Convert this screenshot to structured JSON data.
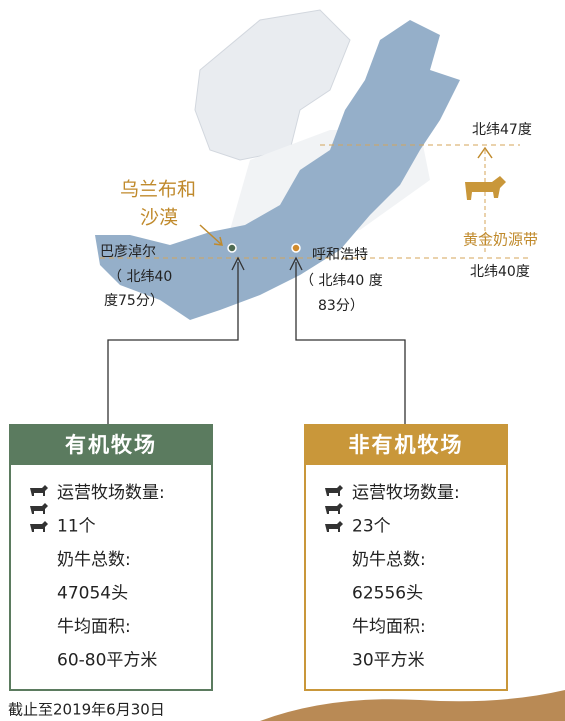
{
  "map": {
    "lat47": "北纬47度",
    "lat40": "北纬40度",
    "belt": "黄金奶源带",
    "desert": [
      "乌兰布和",
      "沙漠"
    ],
    "bayannur": {
      "name": "巴彦淖尔",
      "coord": [
        "（ 北纬40",
        "度75分）"
      ]
    },
    "hohhot": {
      "name": "呼和浩特",
      "coord": [
        "（ 北纬40 度",
        "83分）"
      ]
    }
  },
  "boxes": [
    {
      "title": "有机牧场",
      "lines": [
        "运营牧场数量:",
        "11个",
        "奶牛总数:",
        "47054头",
        "牛均面积:",
        "60-80平方米"
      ]
    },
    {
      "title": "非有机牧场",
      "lines": [
        "运营牧场数量:",
        "23个",
        "奶牛总数:",
        "62556头",
        "牛均面积:",
        "30平方米"
      ]
    }
  ],
  "footnote": "截止至2019年6月30日"
}
